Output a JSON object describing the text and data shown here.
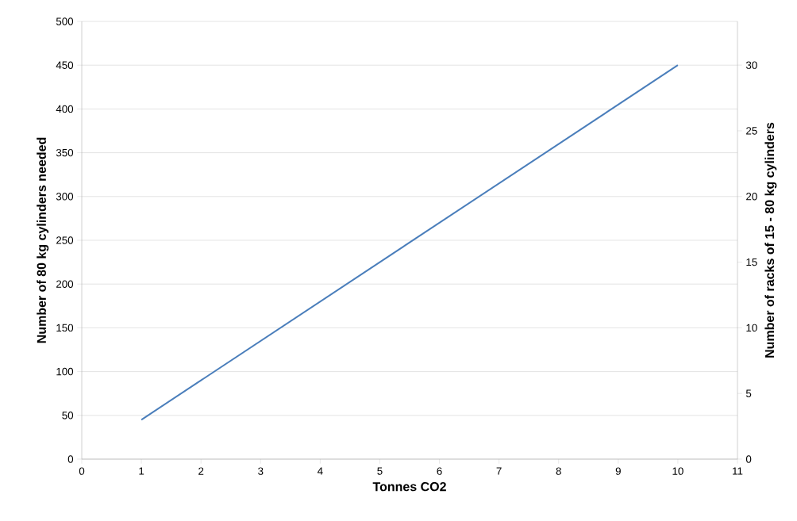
{
  "chart_data": {
    "type": "line",
    "xlabel": "Tonnes CO2",
    "ylabel": "Number of 80 kg cylinders needed",
    "y2label": "Number of racks of 15 - 80 kg cylinders",
    "x": [
      1,
      10
    ],
    "series": [
      {
        "color": "#4a7ebb",
        "values": [
          45,
          450
        ]
      }
    ],
    "xlim": [
      0,
      11
    ],
    "xticks": [
      0,
      1,
      2,
      3,
      4,
      5,
      6,
      7,
      8,
      9,
      10,
      11
    ],
    "ylim": [
      0,
      500
    ],
    "yticks": [
      0,
      50,
      100,
      150,
      200,
      250,
      300,
      350,
      400,
      450,
      500
    ],
    "y2lim": [
      0,
      33.33
    ],
    "y2ticks": [
      0,
      5,
      10,
      15,
      20,
      25,
      30
    ],
    "grid": "y",
    "marker": "none",
    "line_style": "solid"
  }
}
